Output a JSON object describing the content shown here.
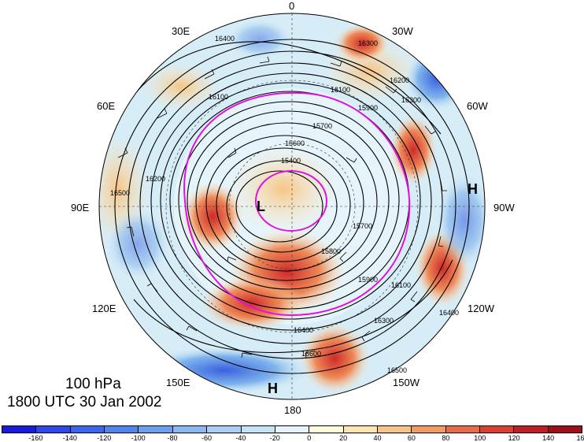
{
  "map": {
    "level": "100 hPa",
    "time": "1800 UTC 30 Jan 2002",
    "longitude_labels": {
      "top": "0",
      "bottom": "180",
      "l30e": "30E",
      "l60e": "60E",
      "l90e": "90E",
      "l120e": "120E",
      "l150e": "150E",
      "l30w": "30W",
      "l60w": "60W",
      "l90w": "90W",
      "l120w": "120W",
      "l150w": "150W"
    },
    "pressure_centers": {
      "high_east": "H",
      "high_south": "H",
      "low_center": "L"
    },
    "contour_labels": [
      "16400",
      "16300",
      "16100",
      "16200",
      "15900",
      "15700",
      "15600",
      "15400",
      "16100",
      "16500",
      "16300",
      "16600",
      "16400",
      "16500",
      "15800",
      "15700",
      "15900",
      "16300",
      "16400",
      "16200",
      "16100"
    ],
    "colorbar": {
      "labels": [
        "-160",
        "-140",
        "-120",
        "-100",
        "-80",
        "-60",
        "-40",
        "-20",
        "0",
        "20",
        "40",
        "60",
        "80",
        "100",
        "120",
        "140",
        "160"
      ],
      "colors": [
        "#1a1adf",
        "#2f47e6",
        "#3a66ea",
        "#4f85ee",
        "#6aa0f0",
        "#8ab8f2",
        "#a9cff4",
        "#c6e3f6",
        "#e5f5fb",
        "#fffbdc",
        "#fde6b0",
        "#f8c483",
        "#f29b5e",
        "#e86d44",
        "#d9412f",
        "#bf1e24",
        "#9e0f1c"
      ]
    },
    "shading_colors": {
      "positive_strong": "#cf2a2a",
      "positive_mid": "#ee8a58",
      "positive_weak": "#fbe7bd",
      "negative_weak": "#c9e6f4",
      "negative_mid": "#7fb3ec",
      "negative_strong": "#3a62e0",
      "jet_axis": "#e010e0"
    }
  }
}
